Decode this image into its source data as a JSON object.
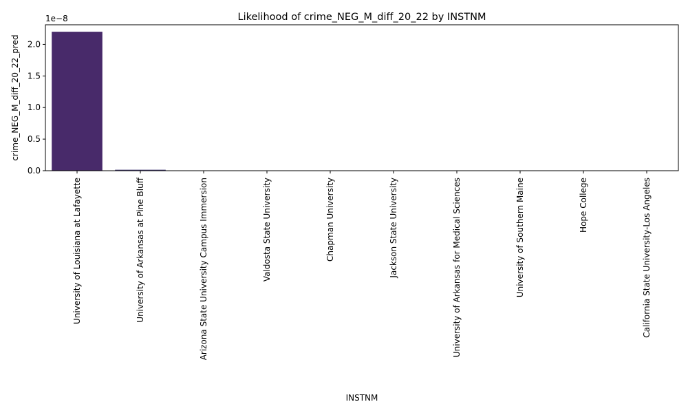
{
  "chart_data": {
    "type": "bar",
    "title": "Likelihood of crime_NEG_M_diff_20_22 by INSTNM",
    "xlabel": "INSTNM",
    "ylabel": "crime_NEG_M_diff_20_22_pred",
    "y_scale_label": "1e−8",
    "ylim": [
      0,
      2.31e-08
    ],
    "yticks": [
      0,
      5e-09,
      1e-08,
      1.5e-08,
      2e-08
    ],
    "ytick_labels": [
      "0.0",
      "0.5",
      "1.0",
      "1.5",
      "2.0"
    ],
    "categories": [
      "University of Louisiana at Lafayette",
      "University of Arkansas at Pine Bluff",
      "Arizona State University Campus Immersion",
      "Valdosta State University",
      "Chapman University",
      "Jackson State University",
      "University of Arkansas for Medical Sciences",
      "University of Southern Maine",
      "Hope College",
      "California State University-Los Angeles"
    ],
    "values": [
      2.2e-08,
      1.5e-10,
      1e-12,
      1e-12,
      1e-12,
      1e-12,
      1e-12,
      1e-12,
      1e-12,
      1e-12
    ],
    "colors": [
      "#482a6a",
      "#433a7a",
      "#3c4e89",
      "#31668e",
      "#277f8e",
      "#1f978b",
      "#29ad81",
      "#4fc26c",
      "#88d54f",
      "#c5df2e"
    ],
    "grid": false,
    "legend": "none"
  }
}
